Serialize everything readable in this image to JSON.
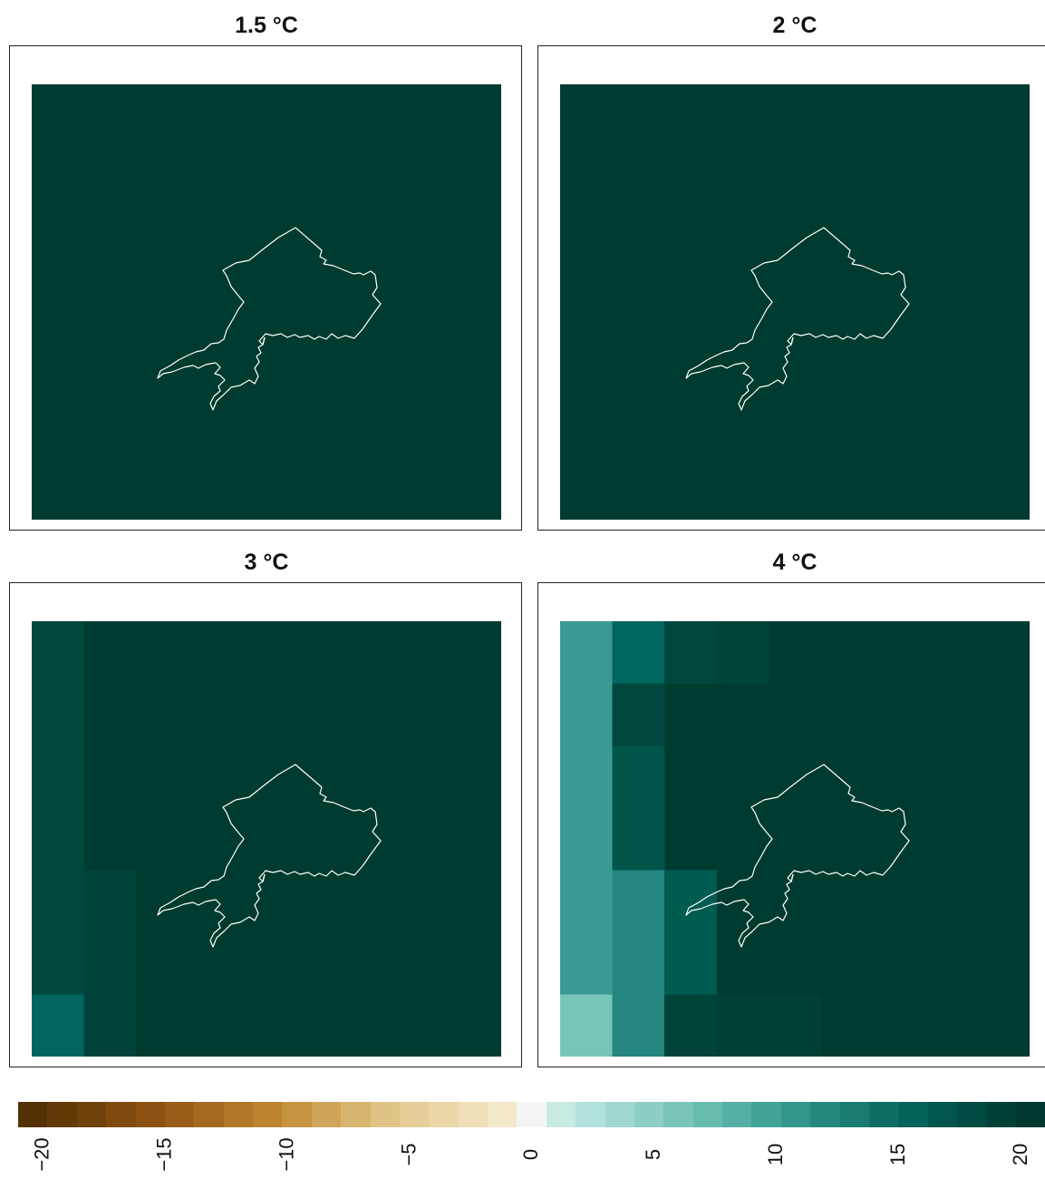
{
  "panels": [
    {
      "title": "1.5 °C",
      "background_color": "#003b2f",
      "cells": []
    },
    {
      "title": "2 °C",
      "background_color": "#003b2f",
      "cells": [
        {
          "col": 0,
          "row": 7,
          "color": "#00443a"
        }
      ]
    },
    {
      "title": "3 °C",
      "background_color": "#003b2f",
      "cells": [
        {
          "col": 0,
          "row": 0,
          "color": "#00473e"
        },
        {
          "col": 0,
          "row": 1,
          "color": "#00473e"
        },
        {
          "col": 0,
          "row": 2,
          "color": "#00473e"
        },
        {
          "col": 0,
          "row": 3,
          "color": "#00473e"
        },
        {
          "col": 0,
          "row": 4,
          "color": "#00473e"
        },
        {
          "col": 0,
          "row": 5,
          "color": "#00473e"
        },
        {
          "col": 0,
          "row": 6,
          "color": "#00665f"
        },
        {
          "col": 0,
          "row": 7,
          "color": "#1b7c74"
        },
        {
          "col": 1,
          "row": 4,
          "color": "#00423a"
        },
        {
          "col": 1,
          "row": 5,
          "color": "#00423a"
        },
        {
          "col": 1,
          "row": 6,
          "color": "#00423a"
        },
        {
          "col": 1,
          "row": 7,
          "color": "#00544a"
        },
        {
          "col": 2,
          "row": 7,
          "color": "#004338"
        },
        {
          "col": 3,
          "row": 7,
          "color": "#004338"
        }
      ]
    },
    {
      "title": "4 °C",
      "background_color": "#003b2f",
      "cells": [
        {
          "col": 0,
          "row": 0,
          "color": "#3a9a93"
        },
        {
          "col": 0,
          "row": 1,
          "color": "#3a9a93"
        },
        {
          "col": 0,
          "row": 2,
          "color": "#3a9a93"
        },
        {
          "col": 0,
          "row": 3,
          "color": "#3a9a93"
        },
        {
          "col": 0,
          "row": 4,
          "color": "#3a9a93"
        },
        {
          "col": 0,
          "row": 5,
          "color": "#3a9a93"
        },
        {
          "col": 0,
          "row": 6,
          "color": "#77c5b9"
        },
        {
          "col": 0,
          "row": 7,
          "color": "#a2dad1"
        },
        {
          "col": 1,
          "row": 0,
          "color": "#00675f"
        },
        {
          "col": 1,
          "row": 1,
          "color": "#00473e"
        },
        {
          "col": 1,
          "row": 2,
          "color": "#00544a"
        },
        {
          "col": 1,
          "row": 3,
          "color": "#00544a"
        },
        {
          "col": 1,
          "row": 4,
          "color": "#24867f"
        },
        {
          "col": 1,
          "row": 5,
          "color": "#24867f"
        },
        {
          "col": 1,
          "row": 6,
          "color": "#24867f"
        },
        {
          "col": 1,
          "row": 7,
          "color": "#55aea5"
        },
        {
          "col": 2,
          "row": 0,
          "color": "#00473e"
        },
        {
          "col": 2,
          "row": 4,
          "color": "#005b51"
        },
        {
          "col": 2,
          "row": 5,
          "color": "#005b51"
        },
        {
          "col": 2,
          "row": 6,
          "color": "#004338"
        },
        {
          "col": 2,
          "row": 7,
          "color": "#006960"
        },
        {
          "col": 3,
          "row": 0,
          "color": "#004338"
        },
        {
          "col": 3,
          "row": 6,
          "color": "#004035"
        },
        {
          "col": 3,
          "row": 7,
          "color": "#1b7c74"
        },
        {
          "col": 4,
          "row": 6,
          "color": "#004035"
        },
        {
          "col": 4,
          "row": 7,
          "color": "#005b51"
        },
        {
          "col": 5,
          "row": 7,
          "color": "#004338"
        }
      ]
    }
  ],
  "legend": {
    "colors": [
      "#543005",
      "#633908",
      "#71410b",
      "#7f4a0f",
      "#8c5213",
      "#995d19",
      "#a46a20",
      "#b07727",
      "#bc842e",
      "#c69340",
      "#d0a459",
      "#d8b56e",
      "#e0c487",
      "#e6ce98",
      "#ebd7a8",
      "#efdfb8",
      "#f3e8ca",
      "#f5f5f5",
      "#c7eae5",
      "#b3e1db",
      "#a0d8d0",
      "#8dcfc5",
      "#7ac5b9",
      "#67bcae",
      "#54b0a2",
      "#41a497",
      "#33968b",
      "#25887f",
      "#1a7b73",
      "#0e6e66",
      "#03625a",
      "#00564e",
      "#004b42",
      "#004137",
      "#00382e"
    ],
    "ticks": [
      "−20",
      "−15",
      "−10",
      "−5",
      "0",
      "5",
      "10",
      "15",
      "20"
    ],
    "min": -21,
    "max": 21
  }
}
